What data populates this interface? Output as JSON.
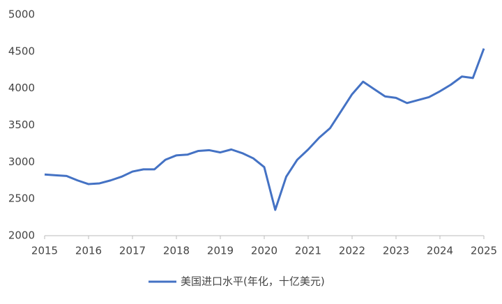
{
  "chart_data": {
    "type": "line",
    "x": [
      2015,
      2015.25,
      2015.5,
      2015.75,
      2016,
      2016.25,
      2016.5,
      2016.75,
      2017,
      2017.25,
      2017.5,
      2017.75,
      2018,
      2018.25,
      2018.5,
      2018.75,
      2019,
      2019.25,
      2019.5,
      2019.75,
      2020,
      2020.25,
      2020.5,
      2020.75,
      2021,
      2021.25,
      2021.5,
      2021.75,
      2022,
      2022.25,
      2022.5,
      2022.75,
      2023,
      2023.25,
      2023.5,
      2023.75,
      2024,
      2024.25,
      2024.5,
      2024.75,
      2025
    ],
    "series": [
      {
        "name": "美国进口水平(年化，十亿美元)",
        "color": "#4472c4",
        "values": [
          2830,
          2820,
          2810,
          2750,
          2700,
          2710,
          2750,
          2800,
          2870,
          2900,
          2900,
          3030,
          3090,
          3100,
          3150,
          3160,
          3130,
          3170,
          3120,
          3050,
          2930,
          2350,
          2800,
          3030,
          3170,
          3330,
          3460,
          3690,
          3920,
          4090,
          3990,
          3890,
          3870,
          3800,
          3840,
          3880,
          3960,
          4050,
          4160,
          4140,
          4540
        ]
      }
    ],
    "xlim": [
      2015,
      2025
    ],
    "xticks": [
      2015,
      2016,
      2017,
      2018,
      2019,
      2020,
      2021,
      2022,
      2023,
      2024,
      2025
    ],
    "ylim": [
      2000,
      5000
    ],
    "yticks": [
      2000,
      2500,
      3000,
      3500,
      4000,
      4500,
      5000
    ],
    "grid": false,
    "legend": "bottom"
  }
}
